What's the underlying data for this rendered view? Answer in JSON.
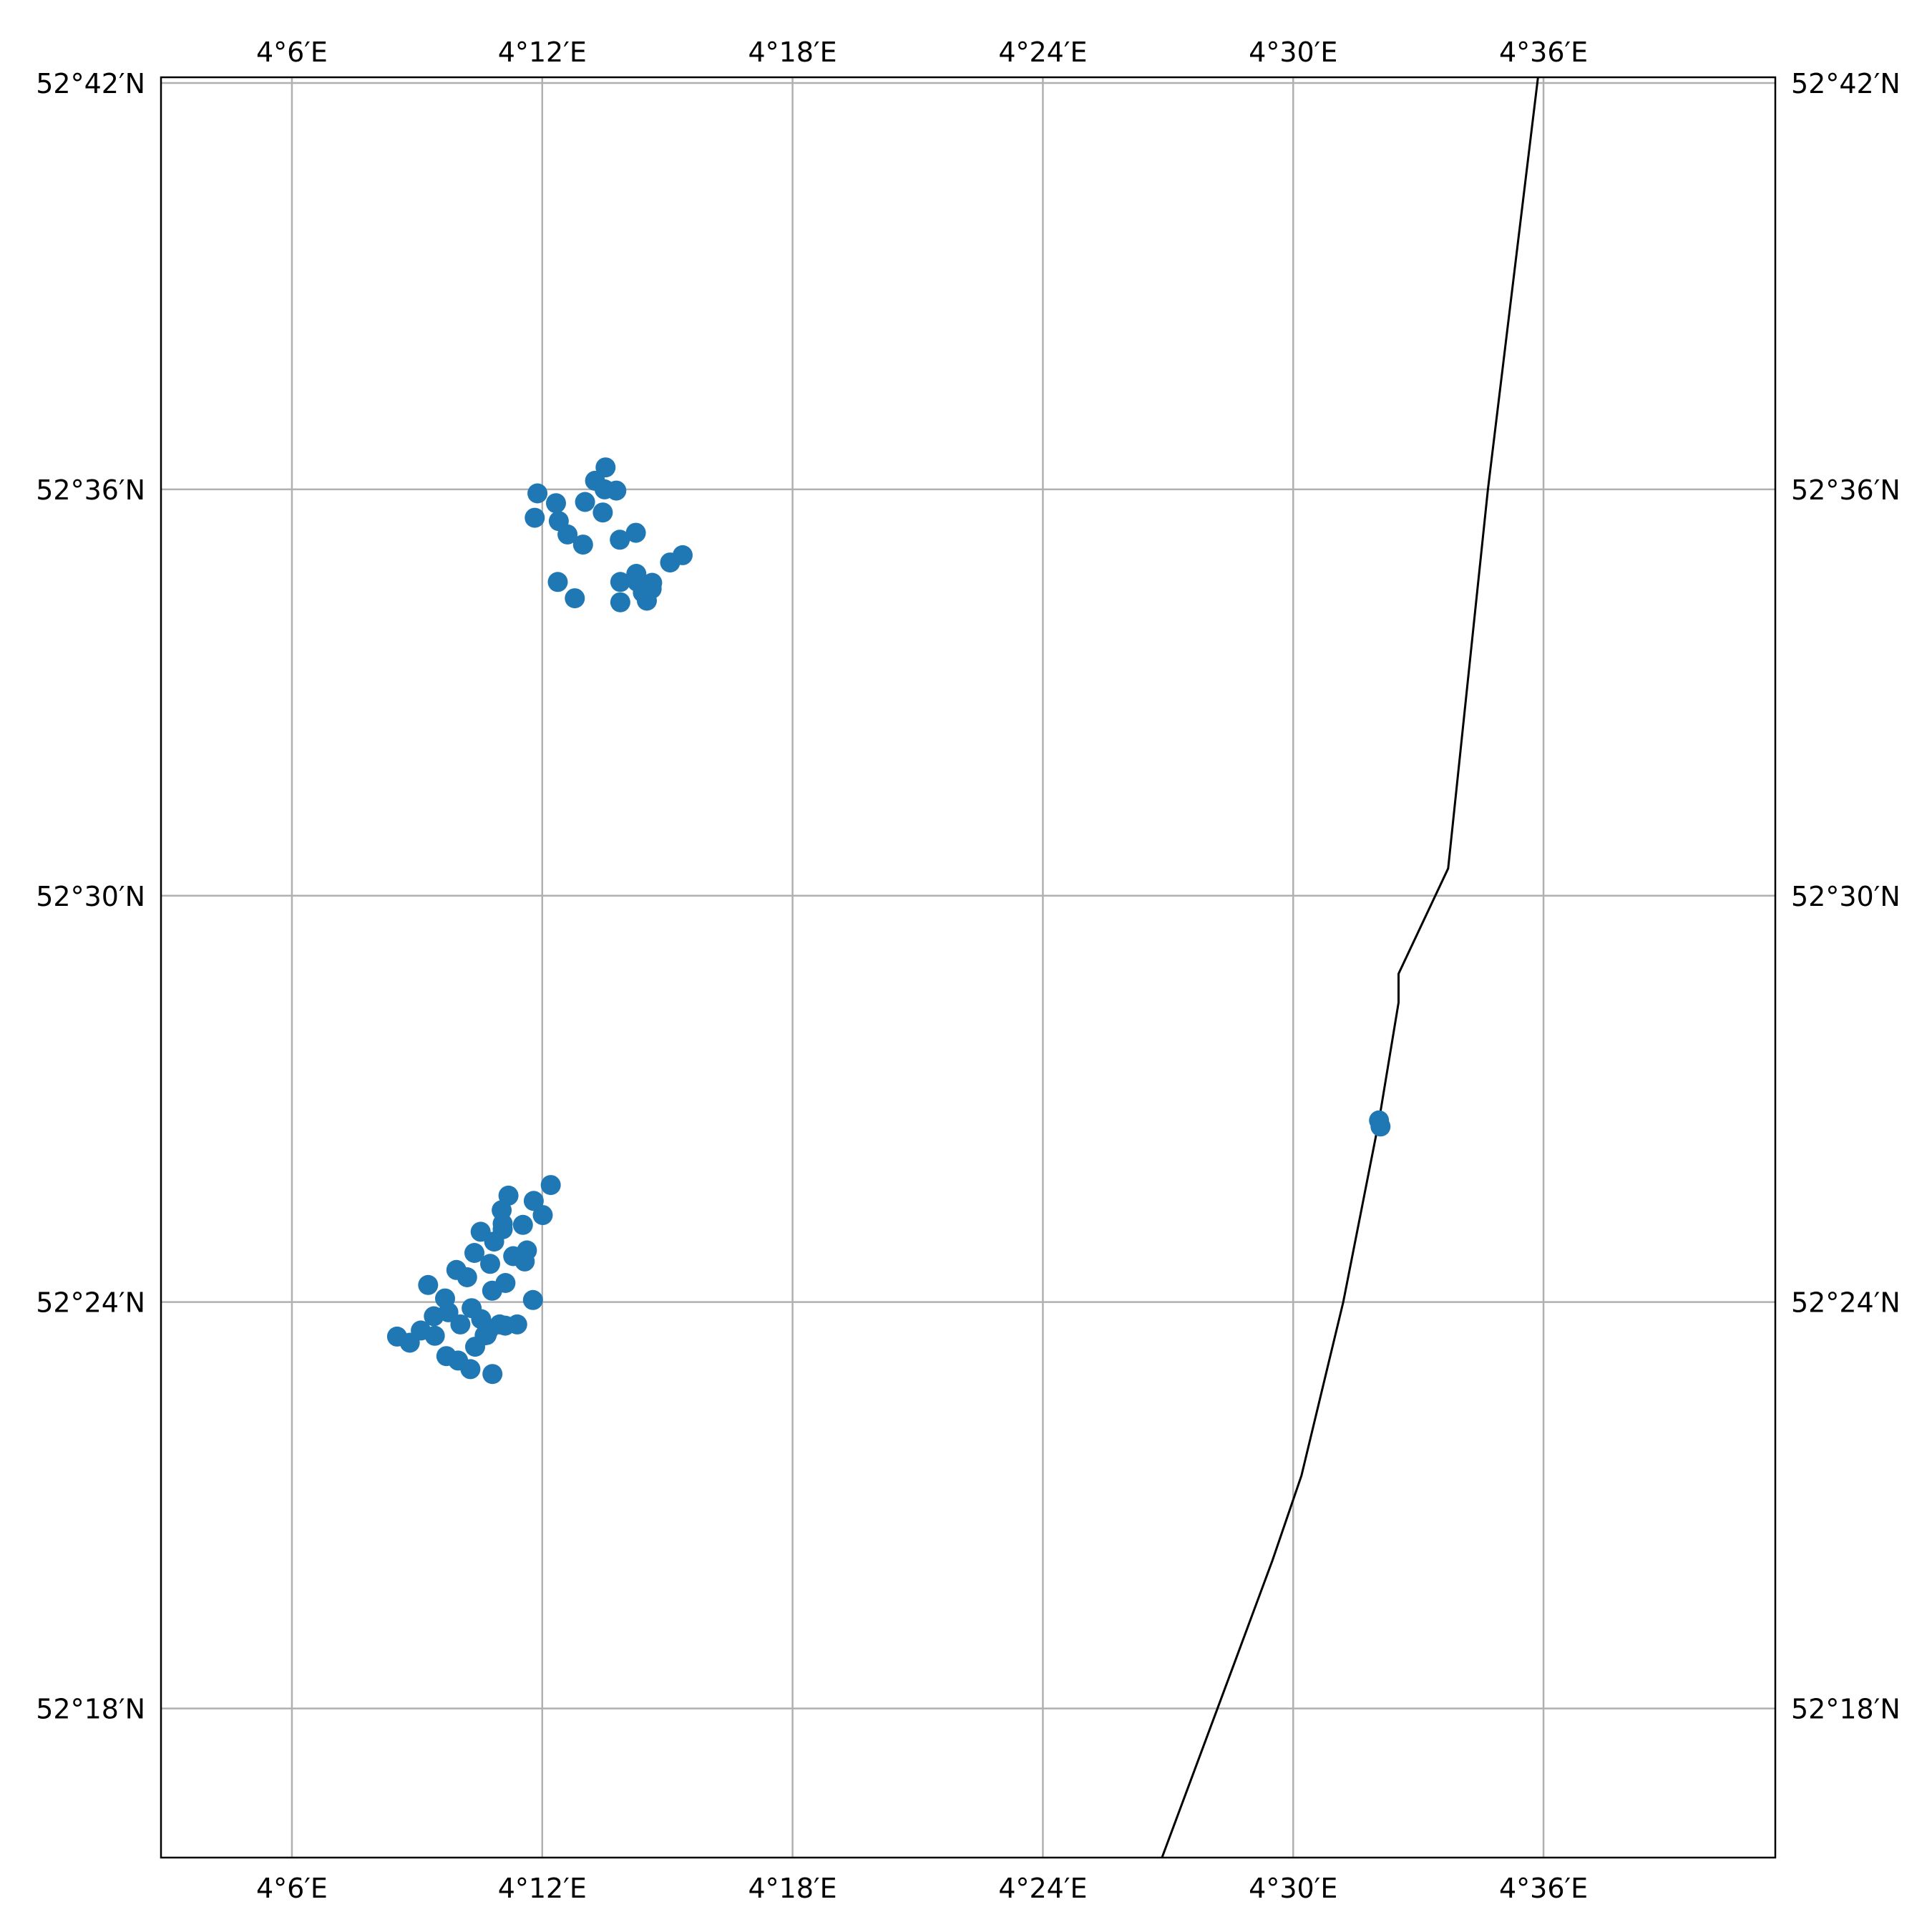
{
  "map": {
    "projection": "PlateCarree",
    "extent": {
      "lon_min": 4.0477,
      "lon_max": 4.6926,
      "lat_min": 52.2633,
      "lat_max": 52.7014
    },
    "gridlines": {
      "lon_values": [
        4.1,
        4.2,
        4.3,
        4.4,
        4.5,
        4.6
      ],
      "lon_labels": [
        "4°6′E",
        "4°12′E",
        "4°18′E",
        "4°24′E",
        "4°30′E",
        "4°36′E"
      ],
      "lat_values": [
        52.7,
        52.6,
        52.5,
        52.4,
        52.3
      ],
      "lat_labels": [
        "52°42′N",
        "52°36′N",
        "52°30′N",
        "52°24′N",
        "52°18′N"
      ],
      "color": "#b0b0b0"
    },
    "coastline": {
      "color": "#000000",
      "points": [
        [
          4.4476,
          52.2633
        ],
        [
          4.4758,
          52.31
        ],
        [
          4.4917,
          52.3364
        ],
        [
          4.5033,
          52.3573
        ],
        [
          4.52,
          52.4
        ],
        [
          4.5343,
          52.4447
        ],
        [
          4.5421,
          52.4737
        ],
        [
          4.5421,
          52.4808
        ],
        [
          4.5619,
          52.5067
        ],
        [
          4.5778,
          52.6
        ],
        [
          4.5978,
          52.7014
        ]
      ]
    },
    "marker_color": "#1f77b4",
    "markers": [
      [
        4.1981,
        52.599
      ],
      [
        4.2055,
        52.5966
      ],
      [
        4.2066,
        52.5922
      ],
      [
        4.197,
        52.593
      ],
      [
        4.2101,
        52.5889
      ],
      [
        4.2163,
        52.5864
      ],
      [
        4.2171,
        52.5969
      ],
      [
        4.2211,
        52.6021
      ],
      [
        4.2249,
        52.6
      ],
      [
        4.2242,
        52.5943
      ],
      [
        4.2253,
        52.6054
      ],
      [
        4.2296,
        52.5997
      ],
      [
        4.231,
        52.5876
      ],
      [
        4.2374,
        52.5893
      ],
      [
        4.2062,
        52.5772
      ],
      [
        4.213,
        52.5732
      ],
      [
        4.2312,
        52.5772
      ],
      [
        4.2379,
        52.5773
      ],
      [
        4.2376,
        52.5792
      ],
      [
        4.2439,
        52.577
      ],
      [
        4.2437,
        52.5755
      ],
      [
        4.2312,
        52.5722
      ],
      [
        4.2418,
        52.5726
      ],
      [
        4.2402,
        52.5746
      ],
      [
        4.2511,
        52.582
      ],
      [
        4.2561,
        52.5838
      ],
      [
        4.5343,
        52.4447
      ],
      [
        4.5349,
        52.4432
      ],
      [
        4.2034,
        52.4288
      ],
      [
        4.2002,
        52.4214
      ],
      [
        4.1966,
        52.4249
      ],
      [
        4.1923,
        52.419
      ],
      [
        4.1939,
        52.4127
      ],
      [
        4.1865,
        52.4262
      ],
      [
        4.1838,
        52.4226
      ],
      [
        4.1842,
        52.4179
      ],
      [
        4.1884,
        52.4113
      ],
      [
        4.1853,
        52.4047
      ],
      [
        4.1808,
        52.4149
      ],
      [
        4.1792,
        52.4094
      ],
      [
        4.18,
        52.4028
      ],
      [
        4.1754,
        52.4173
      ],
      [
        4.1729,
        52.4121
      ],
      [
        4.17,
        52.4061
      ],
      [
        4.1756,
        52.3958
      ],
      [
        4.1718,
        52.3985
      ],
      [
        4.1673,
        52.3945
      ],
      [
        4.1625,
        52.3975
      ],
      [
        4.1657,
        52.4079
      ],
      [
        4.1612,
        52.4009
      ],
      [
        4.1567,
        52.3965
      ],
      [
        4.1544,
        52.4042
      ],
      [
        4.1571,
        52.3917
      ],
      [
        4.1515,
        52.393
      ],
      [
        4.1471,
        52.39
      ],
      [
        4.142,
        52.3915
      ],
      [
        4.1617,
        52.3867
      ],
      [
        4.1664,
        52.3856
      ],
      [
        4.1713,
        52.3835
      ],
      [
        4.1778,
        52.3919
      ],
      [
        4.1786,
        52.3931
      ],
      [
        4.1801,
        52.3823
      ],
      [
        4.1852,
        52.3942
      ],
      [
        4.1732,
        52.389
      ],
      [
        4.1842,
        52.4193
      ],
      [
        4.193,
        52.41
      ],
      [
        4.1963,
        52.4005
      ],
      [
        4.19,
        52.3945
      ],
      [
        4.183,
        52.3945
      ],
      [
        4.177,
        52.3918
      ]
    ]
  }
}
